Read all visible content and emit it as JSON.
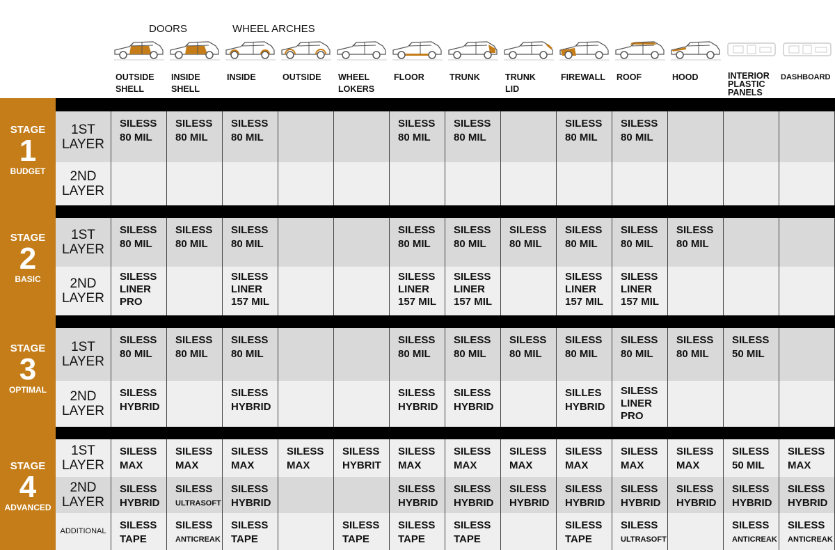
{
  "header": {
    "groups": [
      {
        "label": "DOORS"
      },
      {
        "label": "WHEEL ARCHES"
      }
    ],
    "columns": [
      {
        "label": "OUTSIDE\nSHELL",
        "icon": "car-doors-icon",
        "part": "doors"
      },
      {
        "label": "INSIDE\nSHELL",
        "icon": "car-doors-icon",
        "part": "doors"
      },
      {
        "label": "INSIDE",
        "icon": "car-wheel-arches-inside-icon",
        "part": "arches"
      },
      {
        "label": "OUTSIDE",
        "icon": "car-wheel-arches-outside-icon",
        "part": "arches-light"
      },
      {
        "label": "WHEEL\nLOKERS",
        "icon": "car-wheel-lockers-icon",
        "part": "none"
      },
      {
        "label": "FLOOR",
        "icon": "car-floor-icon",
        "part": "floor"
      },
      {
        "label": "TRUNK",
        "icon": "car-trunk-icon",
        "part": "trunk"
      },
      {
        "label": "TRUNK\nLID",
        "icon": "car-trunk-lid-icon",
        "part": "trunklid"
      },
      {
        "label": "FIREWALL",
        "icon": "car-firewall-icon",
        "part": "firewall"
      },
      {
        "label": "ROOF",
        "icon": "car-roof-icon",
        "part": "roof"
      },
      {
        "label": "HOOD",
        "icon": "car-hood-icon",
        "part": "hood"
      },
      {
        "label": "INTERIOR\nPLASTIC\nPANELS",
        "icon": "interior-panels-icon",
        "part": "interior"
      },
      {
        "label": "DASHBOARD",
        "icon": "dashboard-icon",
        "part": "interior"
      }
    ]
  },
  "colors": {
    "accent": "#c47d18",
    "row_dark": "#d9d9d9",
    "row_light": "#efefef",
    "separator": "#000000"
  },
  "stages": [
    {
      "label": "STAGE",
      "number": "1",
      "name": "BUDGET",
      "rows": [
        {
          "label": [
            "1ST",
            "LAYER"
          ],
          "cells": [
            [
              "SILESS",
              "80 MIL"
            ],
            [
              "SILESS",
              "80 MIL"
            ],
            [
              "SILESS",
              "80 MIL"
            ],
            [],
            [],
            [
              "SILESS",
              "80 MIL"
            ],
            [
              "SILESS",
              "80 MIL"
            ],
            [],
            [
              "SILESS",
              "80 MIL"
            ],
            [
              "SILESS",
              "80 MIL"
            ],
            [],
            [],
            []
          ]
        },
        {
          "label": [
            "2ND",
            "LAYER"
          ],
          "cells": [
            [],
            [],
            [],
            [],
            [],
            [],
            [],
            [],
            [],
            [],
            [],
            [],
            []
          ]
        }
      ]
    },
    {
      "label": "STAGE",
      "number": "2",
      "name": "BASIC",
      "rows": [
        {
          "label": [
            "1ST",
            "LAYER"
          ],
          "cells": [
            [
              "SILESS",
              "80 MIL"
            ],
            [
              "SILESS",
              "80 MIL"
            ],
            [
              "SILESS",
              "80 MIL"
            ],
            [],
            [],
            [
              "SILESS",
              "80 MIL"
            ],
            [
              "SILESS",
              "80 MIL"
            ],
            [
              "SILESS",
              "80 MIL"
            ],
            [
              "SILESS",
              "80 MIL"
            ],
            [
              "SILESS",
              "80 MIL"
            ],
            [
              "SILESS",
              "80 MIL"
            ],
            [],
            []
          ]
        },
        {
          "label": [
            "2ND",
            "LAYER"
          ],
          "cells": [
            [
              "SILESS",
              "LINER",
              "PRO"
            ],
            [],
            [
              "SILESS",
              "LINER",
              "157 MIL"
            ],
            [],
            [],
            [
              "SILESS",
              "LINER",
              "157 MIL"
            ],
            [
              "SILESS",
              "LINER",
              "157 MIL"
            ],
            [],
            [
              "SILESS",
              "LINER",
              "157 MIL"
            ],
            [
              "SILESS",
              "LINER",
              "157 MIL"
            ],
            [],
            [],
            []
          ]
        }
      ]
    },
    {
      "label": "STAGE",
      "number": "3",
      "name": "OPTIMAL",
      "rows": [
        {
          "label": [
            "1ST",
            "LAYER"
          ],
          "cells": [
            [
              "SILESS",
              "80 MIL"
            ],
            [
              "SILESS",
              "80 MIL"
            ],
            [
              "SILESS",
              "80 MIL"
            ],
            [],
            [],
            [
              "SILESS",
              "80 MIL"
            ],
            [
              "SILESS",
              "80 MIL"
            ],
            [
              "SILESS",
              "80 MIL"
            ],
            [
              "SILESS",
              "80 MIL"
            ],
            [
              "SILESS",
              "80 MIL"
            ],
            [
              "SILESS",
              "80 MIL"
            ],
            [
              "SILESS",
              "50 MIL"
            ],
            []
          ]
        },
        {
          "label": [
            "2ND",
            "LAYER"
          ],
          "cells": [
            [
              "SILESS",
              "HYBRID"
            ],
            [],
            [
              "SILESS",
              "HYBRID"
            ],
            [],
            [],
            [
              "SILESS",
              "HYBRID"
            ],
            [
              "SILESS",
              "HYBRID"
            ],
            [],
            [
              "SILLES",
              "HYBRID"
            ],
            [
              "SILESS",
              "LINER",
              "PRO"
            ],
            [],
            [],
            []
          ]
        }
      ]
    },
    {
      "label": "STAGE",
      "number": "4",
      "name": "ADVANCED",
      "rows": [
        {
          "label": [
            "1ST",
            "LAYER"
          ],
          "cells": [
            [
              "SILESS",
              "MAX"
            ],
            [
              "SILESS",
              "MAX"
            ],
            [
              "SILESS",
              "MAX"
            ],
            [
              "SILESS",
              "MAX"
            ],
            [
              "SILESS",
              "HYBRIT"
            ],
            [
              "SILESS",
              "MAX"
            ],
            [
              "SILESS",
              "MAX"
            ],
            [
              "SILESS",
              "MAX"
            ],
            [
              "SILESS",
              "MAX"
            ],
            [
              "SILESS",
              "MAX"
            ],
            [
              "SILESS",
              "MAX"
            ],
            [
              "SILESS",
              "50 MIL"
            ],
            [
              "SILESS",
              "MAX"
            ]
          ]
        },
        {
          "label": [
            "2ND",
            "LAYER"
          ],
          "cells": [
            [
              "SILESS",
              "HYBRID"
            ],
            [
              "SILESS",
              "ULTRASOFT"
            ],
            [
              "SILESS",
              "HYBRID"
            ],
            [],
            [],
            [
              "SILESS",
              "HYBRID"
            ],
            [
              "SILESS",
              "HYBRID"
            ],
            [
              "SILESS",
              "HYBRID"
            ],
            [
              "SILESS",
              "HYBRID"
            ],
            [
              "SILESS",
              "HYBRID"
            ],
            [
              "SILESS",
              "HYBRID"
            ],
            [
              "SILESS",
              "HYBRID"
            ],
            [
              "SILESS",
              "HYBRID"
            ]
          ]
        },
        {
          "label": [
            "ADDITIONAL"
          ],
          "cells": [
            [
              "SILESS",
              "TAPE"
            ],
            [
              "SILESS",
              "ANTICREAK"
            ],
            [
              "SILESS",
              "TAPE"
            ],
            [],
            [
              "SILESS",
              "TAPE"
            ],
            [
              "SILESS",
              "TAPE"
            ],
            [
              "SILESS",
              "TAPE"
            ],
            [],
            [
              "SILESS",
              "TAPE"
            ],
            [
              "SILESS",
              "ULTRASOFT"
            ],
            [],
            [
              "SILESS",
              "ANTICREAK"
            ],
            [
              "SILESS",
              "ANTICREAK"
            ]
          ]
        }
      ]
    }
  ]
}
